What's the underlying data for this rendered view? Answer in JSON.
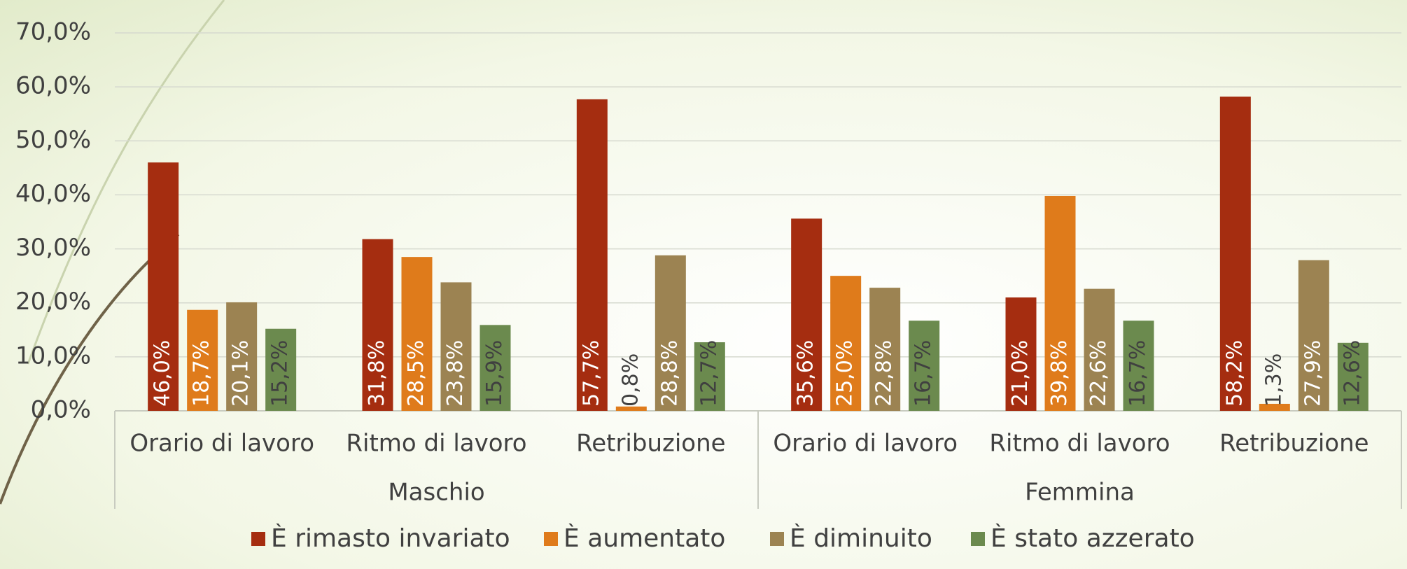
{
  "chart_data": {
    "type": "bar",
    "groups": [
      {
        "name": "Maschio",
        "categories": [
          "Orario di lavoro",
          "Ritmo di lavoro",
          "Retribuzione"
        ]
      },
      {
        "name": "Femmina",
        "categories": [
          "Orario di lavoro",
          "Ritmo di lavoro",
          "Retribuzione"
        ]
      }
    ],
    "series": [
      {
        "name": "È rimasto invariato",
        "color": "#a52d10",
        "values": [
          46.0,
          31.8,
          57.7,
          35.6,
          21.0,
          58.2
        ],
        "value_labels": [
          "46,0%",
          "31,8%",
          "57,7%",
          "35,6%",
          "21,0%",
          "58,2%"
        ]
      },
      {
        "name": "È aumentato",
        "color": "#df7b1b",
        "values": [
          18.7,
          28.5,
          0.8,
          25.0,
          39.8,
          1.3
        ],
        "value_labels": [
          "18,7%",
          "28,5%",
          "0,8%",
          "25,0%",
          "39,8%",
          "1,3%"
        ]
      },
      {
        "name": "È diminuito",
        "color": "#9c8352",
        "values": [
          20.1,
          23.8,
          28.8,
          22.8,
          22.6,
          27.9
        ],
        "value_labels": [
          "20,1%",
          "23,8%",
          "28,8%",
          "22,8%",
          "22,6%",
          "27,9%"
        ]
      },
      {
        "name": "È stato azzerato",
        "color": "#6b8a4e",
        "values": [
          15.2,
          15.9,
          12.7,
          16.7,
          16.7,
          12.6
        ],
        "value_labels": [
          "15,2%",
          "15,9%",
          "12,7%",
          "16,7%",
          "16,7%",
          "12,6%"
        ]
      }
    ],
    "ylim": [
      0,
      70
    ],
    "yticks": [
      {
        "value": 0,
        "label": "0,0%"
      },
      {
        "value": 10,
        "label": "10,0%"
      },
      {
        "value": 20,
        "label": "20,0%"
      },
      {
        "value": 30,
        "label": "30,0%"
      },
      {
        "value": 40,
        "label": "40,0%"
      },
      {
        "value": 50,
        "label": "50,0%"
      },
      {
        "value": 60,
        "label": "60,0%"
      },
      {
        "value": 70,
        "label": "70,0%"
      }
    ],
    "grid": true,
    "legend": "bottom"
  }
}
